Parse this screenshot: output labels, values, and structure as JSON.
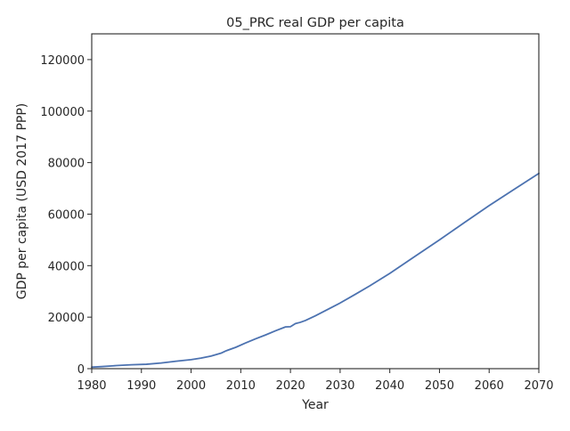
{
  "chart_data": {
    "type": "line",
    "title": "05_PRC real GDP per capita",
    "xlabel": "Year",
    "ylabel": "GDP per capita (USD 2017 PPP)",
    "xlim": [
      1980,
      2070
    ],
    "ylim": [
      0,
      130000
    ],
    "xticks": [
      1980,
      1990,
      2000,
      2010,
      2020,
      2030,
      2040,
      2050,
      2060,
      2070
    ],
    "yticks": [
      0,
      20000,
      40000,
      60000,
      80000,
      100000,
      120000
    ],
    "grid": false,
    "legend": "none",
    "series": [
      {
        "color": "#4c72b0",
        "x": [
          1980,
          1982,
          1985,
          1988,
          1991,
          1994,
          1997,
          2000,
          2002,
          2004,
          2006,
          2007,
          2009,
          2011,
          2013,
          2015,
          2017,
          2019,
          2020,
          2021,
          2022,
          2023,
          2025,
          2028,
          2030,
          2033,
          2036,
          2040,
          2045,
          2050,
          2055,
          2060,
          2065,
          2070
        ],
        "y": [
          600,
          800,
          1200,
          1500,
          1700,
          2200,
          2900,
          3500,
          4100,
          4900,
          6000,
          6900,
          8300,
          10000,
          11600,
          13100,
          14700,
          16200,
          16300,
          17500,
          18000,
          18700,
          20500,
          23500,
          25500,
          28800,
          32200,
          37000,
          43500,
          50000,
          56700,
          63300,
          69600,
          75800
        ]
      }
    ]
  }
}
